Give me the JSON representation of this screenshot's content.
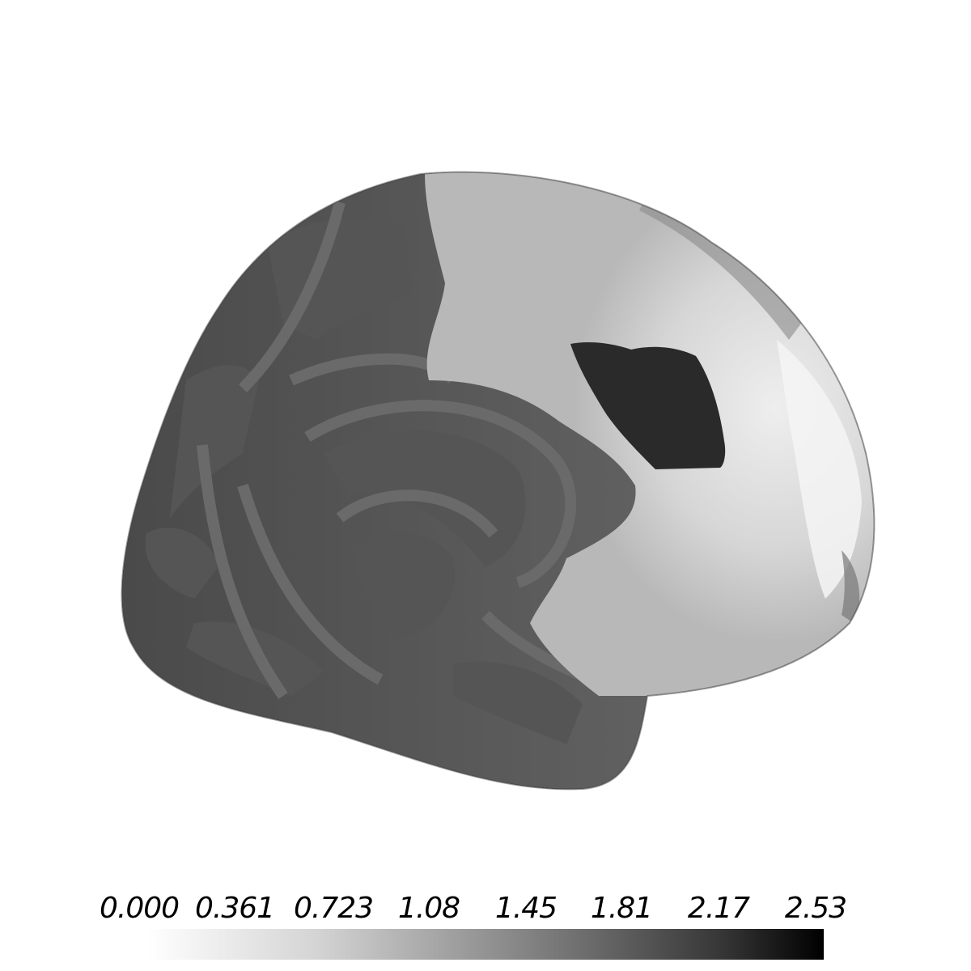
{
  "figure": {
    "type": "inflated-cortical-surface",
    "view": "lateral",
    "surface_colors": {
      "background": "#ffffff",
      "sulcal_dark": "#4f4f4f",
      "gyral_light": "#6e6e6e",
      "highlighted_region": "#cfcfcf",
      "highlight_peak": "#ebebeb",
      "dark_spot": "#2a2a2a"
    }
  },
  "colorbar": {
    "tick_labels": [
      "0.000",
      "0.361",
      "0.723",
      "1.08",
      "1.45",
      "1.81",
      "2.17",
      "2.53"
    ],
    "min": 0.0,
    "max": 2.53,
    "colormap": "white-to-black"
  }
}
